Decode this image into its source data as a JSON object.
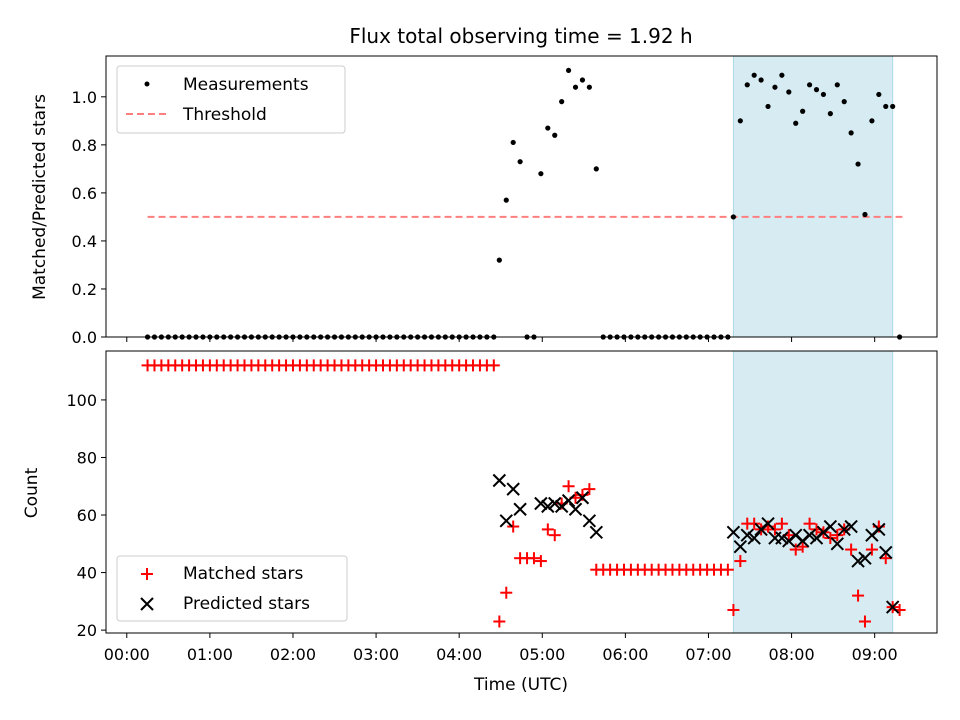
{
  "title": "Flux total observing time = 1.92 h",
  "colors": {
    "measure": "#000000",
    "threshold": "#ff7f7f",
    "matched": "#ff0000",
    "predicted": "#000000",
    "span": "#add8e6"
  },
  "chart_data": [
    {
      "type": "scatter",
      "panel": "top",
      "title": "Flux total observing time = 1.92 h",
      "ylabel": "Matched/Predicted stars",
      "xlim": [
        "-00:15",
        "09:45"
      ],
      "ylim": [
        0,
        1.17
      ],
      "yticks": [
        "0.0",
        "0.2",
        "0.4",
        "0.6",
        "0.8",
        "1.0"
      ],
      "shaded_span": [
        "07:18",
        "09:13"
      ],
      "legend": {
        "placement": "top-left",
        "entries": [
          "Measurements",
          "Threshold"
        ]
      },
      "threshold": {
        "name": "Threshold",
        "y": 0.5,
        "x_range": [
          "00:15",
          "09:20"
        ]
      },
      "series": [
        {
          "name": "Measurements",
          "times": [
            "00:15",
            "00:20",
            "00:25",
            "00:30",
            "00:35",
            "00:40",
            "00:45",
            "00:50",
            "00:55",
            "01:00",
            "01:05",
            "01:10",
            "01:15",
            "01:20",
            "01:25",
            "01:30",
            "01:35",
            "01:40",
            "01:45",
            "01:50",
            "01:55",
            "02:00",
            "02:05",
            "02:10",
            "02:15",
            "02:20",
            "02:25",
            "02:30",
            "02:35",
            "02:40",
            "02:45",
            "02:50",
            "02:55",
            "03:00",
            "03:05",
            "03:10",
            "03:15",
            "03:20",
            "03:25",
            "03:30",
            "03:35",
            "03:40",
            "03:45",
            "03:50",
            "03:55",
            "04:00",
            "04:05",
            "04:10",
            "04:15",
            "04:20",
            "04:25",
            "04:29",
            "04:34",
            "04:39",
            "04:44",
            "04:49",
            "04:54",
            "04:59",
            "05:04",
            "05:09",
            "05:14",
            "05:19",
            "05:24",
            "05:29",
            "05:34",
            "05:39",
            "05:44",
            "05:49",
            "05:54",
            "05:59",
            "06:04",
            "06:09",
            "06:14",
            "06:19",
            "06:24",
            "06:29",
            "06:34",
            "06:39",
            "06:44",
            "06:49",
            "06:54",
            "06:59",
            "07:04",
            "07:09",
            "07:14",
            "07:18",
            "07:23",
            "07:28",
            "07:33",
            "07:38",
            "07:43",
            "07:48",
            "07:53",
            "07:58",
            "08:03",
            "08:08",
            "08:13",
            "08:18",
            "08:23",
            "08:28",
            "08:33",
            "08:38",
            "08:43",
            "08:48",
            "08:53",
            "08:58",
            "09:03",
            "09:08",
            "09:13",
            "09:18"
          ],
          "values": [
            0,
            0,
            0,
            0,
            0,
            0,
            0,
            0,
            0,
            0,
            0,
            0,
            0,
            0,
            0,
            0,
            0,
            0,
            0,
            0,
            0,
            0,
            0,
            0,
            0,
            0,
            0,
            0,
            0,
            0,
            0,
            0,
            0,
            0,
            0,
            0,
            0,
            0,
            0,
            0,
            0,
            0,
            0,
            0,
            0,
            0,
            0,
            0,
            0,
            0,
            0,
            0.32,
            0.57,
            0.81,
            0.73,
            0,
            0,
            0.68,
            0.87,
            0.84,
            0.98,
            1.11,
            1.04,
            1.07,
            1.04,
            0.7,
            0,
            0,
            0,
            0,
            0,
            0,
            0,
            0,
            0,
            0,
            0,
            0,
            0,
            0,
            0,
            0,
            0,
            0,
            0,
            0.5,
            0.9,
            1.05,
            1.09,
            1.07,
            0.96,
            1.04,
            1.09,
            1.02,
            0.89,
            0.94,
            1.05,
            1.03,
            1.01,
            0.93,
            1.05,
            0.98,
            0.85,
            0.72,
            0.51,
            0.9,
            1.01,
            0.96,
            0.96,
            0
          ]
        }
      ]
    },
    {
      "type": "scatter",
      "panel": "bottom",
      "xlabel": "Time (UTC)",
      "ylabel": "Count",
      "xlim": [
        "-00:15",
        "09:45"
      ],
      "ylim": [
        19,
        117
      ],
      "yticks": [
        "20",
        "40",
        "60",
        "80",
        "100"
      ],
      "xticks": [
        "00:00",
        "01:00",
        "02:00",
        "03:00",
        "04:00",
        "05:00",
        "06:00",
        "07:00",
        "08:00",
        "09:00"
      ],
      "shaded_span": [
        "07:18",
        "09:13"
      ],
      "legend": {
        "placement": "bottom-left",
        "entries": [
          "Matched stars",
          "Predicted stars"
        ]
      },
      "series": [
        {
          "name": "Matched stars",
          "marker": "+",
          "times": [
            "00:15",
            "00:20",
            "00:25",
            "00:30",
            "00:35",
            "00:40",
            "00:45",
            "00:50",
            "00:55",
            "01:00",
            "01:05",
            "01:10",
            "01:15",
            "01:20",
            "01:25",
            "01:30",
            "01:35",
            "01:40",
            "01:45",
            "01:50",
            "01:55",
            "02:00",
            "02:05",
            "02:10",
            "02:15",
            "02:20",
            "02:25",
            "02:30",
            "02:35",
            "02:40",
            "02:45",
            "02:50",
            "02:55",
            "03:00",
            "03:05",
            "03:10",
            "03:15",
            "03:20",
            "03:25",
            "03:30",
            "03:35",
            "03:40",
            "03:45",
            "03:50",
            "03:55",
            "04:00",
            "04:05",
            "04:10",
            "04:15",
            "04:20",
            "04:25",
            "04:29",
            "04:34",
            "04:39",
            "04:44",
            "04:49",
            "04:54",
            "04:59",
            "05:04",
            "05:09",
            "05:14",
            "05:19",
            "05:24",
            "05:29",
            "05:34",
            "05:39",
            "05:44",
            "05:49",
            "05:54",
            "05:59",
            "06:04",
            "06:09",
            "06:14",
            "06:19",
            "06:24",
            "06:29",
            "06:34",
            "06:39",
            "06:44",
            "06:49",
            "06:54",
            "06:59",
            "07:04",
            "07:09",
            "07:14",
            "07:18",
            "07:23",
            "07:28",
            "07:33",
            "07:38",
            "07:43",
            "07:48",
            "07:53",
            "07:58",
            "08:03",
            "08:08",
            "08:13",
            "08:18",
            "08:23",
            "08:28",
            "08:33",
            "08:38",
            "08:43",
            "08:48",
            "08:53",
            "08:58",
            "09:03",
            "09:08",
            "09:13",
            "09:18"
          ],
          "values": [
            112,
            112,
            112,
            112,
            112,
            112,
            112,
            112,
            112,
            112,
            112,
            112,
            112,
            112,
            112,
            112,
            112,
            112,
            112,
            112,
            112,
            112,
            112,
            112,
            112,
            112,
            112,
            112,
            112,
            112,
            112,
            112,
            112,
            112,
            112,
            112,
            112,
            112,
            112,
            112,
            112,
            112,
            112,
            112,
            112,
            112,
            112,
            112,
            112,
            112,
            112,
            23,
            33,
            56,
            45,
            45,
            45,
            44,
            55,
            53,
            64,
            70,
            66,
            67,
            69,
            41,
            41,
            41,
            41,
            41,
            41,
            41,
            41,
            41,
            41,
            41,
            41,
            41,
            41,
            41,
            41,
            41,
            41,
            41,
            41,
            27,
            44,
            57,
            57,
            55,
            56,
            55,
            57,
            53,
            48,
            49,
            57,
            55,
            54,
            52,
            53,
            55,
            48,
            32,
            23,
            48,
            56,
            45,
            28,
            27
          ]
        },
        {
          "name": "Predicted stars",
          "marker": "x",
          "times": [
            "04:29",
            "04:34",
            "04:39",
            "04:44",
            "04:59",
            "05:04",
            "05:09",
            "05:14",
            "05:19",
            "05:24",
            "05:29",
            "05:34",
            "05:39",
            "07:18",
            "07:23",
            "07:28",
            "07:33",
            "07:38",
            "07:43",
            "07:48",
            "07:53",
            "07:58",
            "08:03",
            "08:08",
            "08:13",
            "08:18",
            "08:23",
            "08:28",
            "08:33",
            "08:38",
            "08:43",
            "08:48",
            "08:53",
            "08:58",
            "09:03",
            "09:08",
            "09:13"
          ],
          "values": [
            72,
            58,
            69,
            62,
            64,
            63,
            64,
            63,
            65,
            62,
            66,
            58,
            54,
            54,
            49,
            53,
            52,
            55,
            57,
            52,
            52,
            51,
            53,
            51,
            53,
            52,
            54,
            56,
            50,
            55,
            56,
            44,
            45,
            53,
            55,
            47,
            28
          ]
        }
      ]
    }
  ]
}
